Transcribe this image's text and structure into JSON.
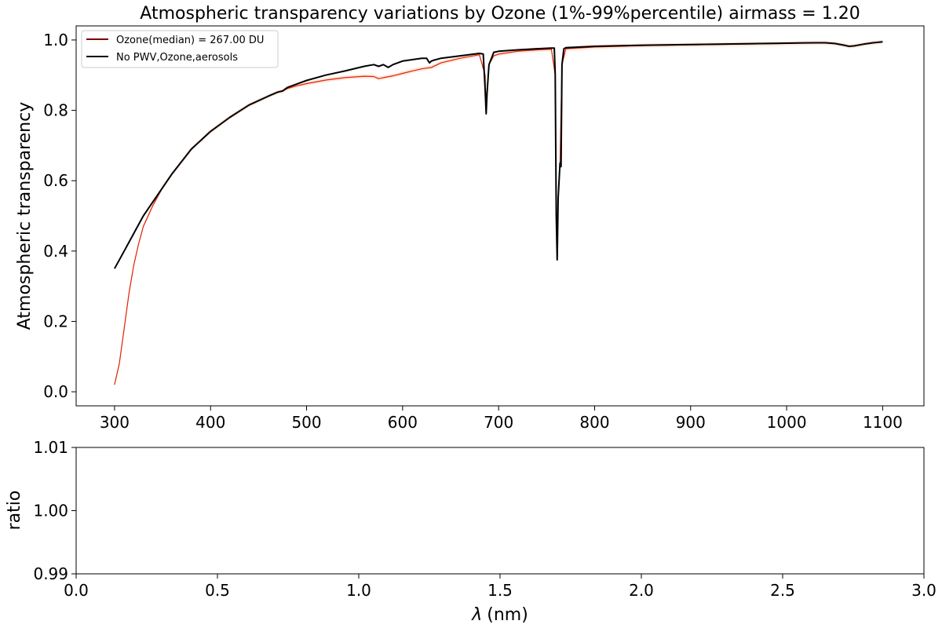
{
  "chart_data": [
    {
      "type": "line",
      "title": "Atmospheric transparency variations by Ozone (1%-99%percentile) airmass = 1.20",
      "xlabel": "",
      "ylabel": "Atmospheric transparency",
      "xlim": [
        260,
        1143
      ],
      "ylim": [
        -0.04,
        1.04
      ],
      "xticks": [
        300,
        400,
        500,
        600,
        700,
        800,
        900,
        1000,
        1100
      ],
      "yticks": [
        0.0,
        0.2,
        0.4,
        0.6,
        0.8,
        1.0
      ],
      "ytick_labels": [
        "0.0",
        "0.2",
        "0.4",
        "0.6",
        "0.8",
        "1.0"
      ],
      "grid": false,
      "legend_position": "top-left",
      "series": [
        {
          "name": "Ozone(median) = 267.00 DU",
          "color": "#7a0000",
          "x": [
            300,
            305,
            310,
            315,
            320,
            325,
            330,
            340,
            350,
            360,
            380,
            400,
            420,
            440,
            460,
            470,
            475,
            480,
            490,
            500,
            520,
            540,
            560,
            570,
            575,
            580,
            590,
            600,
            610,
            620,
            625,
            630,
            640,
            660,
            680,
            686,
            687,
            688,
            690,
            695,
            700,
            720,
            740,
            755,
            759,
            760,
            761,
            762,
            764,
            766,
            770,
            800,
            850,
            900,
            950,
            1000,
            1030,
            1040,
            1050,
            1060,
            1065,
            1070,
            1080,
            1090,
            1100
          ],
          "values": [
            0.02,
            0.08,
            0.18,
            0.28,
            0.36,
            0.42,
            0.47,
            0.53,
            0.58,
            0.62,
            0.69,
            0.74,
            0.78,
            0.815,
            0.84,
            0.852,
            0.855,
            0.862,
            0.87,
            0.876,
            0.886,
            0.893,
            0.897,
            0.896,
            0.89,
            0.893,
            0.898,
            0.905,
            0.912,
            0.918,
            0.92,
            0.922,
            0.935,
            0.948,
            0.958,
            0.9,
            0.79,
            0.85,
            0.93,
            0.955,
            0.96,
            0.968,
            0.972,
            0.974,
            0.9,
            0.5,
            0.375,
            0.55,
            0.65,
            0.93,
            0.975,
            0.98,
            0.984,
            0.986,
            0.988,
            0.99,
            0.992,
            0.992,
            0.99,
            0.985,
            0.982,
            0.983,
            0.988,
            0.992,
            0.995
          ]
        },
        {
          "name": "No PWV,Ozone,aerosols",
          "color": "#000000",
          "x": [
            300,
            310,
            320,
            330,
            340,
            350,
            360,
            380,
            400,
            420,
            440,
            460,
            470,
            475,
            480,
            490,
            500,
            520,
            540,
            560,
            570,
            575,
            580,
            585,
            590,
            600,
            620,
            625,
            628,
            630,
            632,
            640,
            660,
            680,
            684,
            686,
            687,
            688,
            690,
            695,
            700,
            720,
            740,
            755,
            758,
            759,
            760,
            761,
            762,
            764,
            765,
            766,
            768,
            770,
            800,
            850,
            900,
            950,
            1000,
            1030,
            1040,
            1050,
            1060,
            1065,
            1070,
            1080,
            1090,
            1100
          ],
          "values": [
            0.35,
            0.4,
            0.45,
            0.5,
            0.54,
            0.58,
            0.62,
            0.69,
            0.74,
            0.78,
            0.815,
            0.84,
            0.852,
            0.855,
            0.865,
            0.875,
            0.885,
            0.9,
            0.912,
            0.925,
            0.93,
            0.925,
            0.93,
            0.922,
            0.93,
            0.94,
            0.948,
            0.948,
            0.935,
            0.94,
            0.942,
            0.948,
            0.955,
            0.962,
            0.96,
            0.86,
            0.79,
            0.85,
            0.93,
            0.965,
            0.968,
            0.972,
            0.975,
            0.977,
            0.977,
            0.9,
            0.5,
            0.375,
            0.55,
            0.65,
            0.64,
            0.93,
            0.975,
            0.978,
            0.982,
            0.985,
            0.987,
            0.989,
            0.991,
            0.992,
            0.992,
            0.99,
            0.985,
            0.982,
            0.983,
            0.988,
            0.992,
            0.995
          ]
        }
      ]
    },
    {
      "type": "line",
      "title": "",
      "xlabel": "λ (nm)",
      "xlabel_symbol": "λ",
      "xlabel_unit": "(nm)",
      "ylabel": "ratio",
      "xlim": [
        0.0,
        3.0
      ],
      "ylim": [
        0.99,
        1.01
      ],
      "xticks": [
        0.0,
        0.5,
        1.0,
        1.5,
        2.0,
        2.5,
        3.0
      ],
      "xtick_labels": [
        "0.0",
        "0.5",
        "1.0",
        "1.5",
        "2.0",
        "2.5",
        "3.0"
      ],
      "yticks": [
        0.99,
        1.0,
        1.01
      ],
      "ytick_labels": [
        "0.99",
        "1.00",
        "1.01"
      ],
      "grid": false,
      "series": []
    }
  ]
}
